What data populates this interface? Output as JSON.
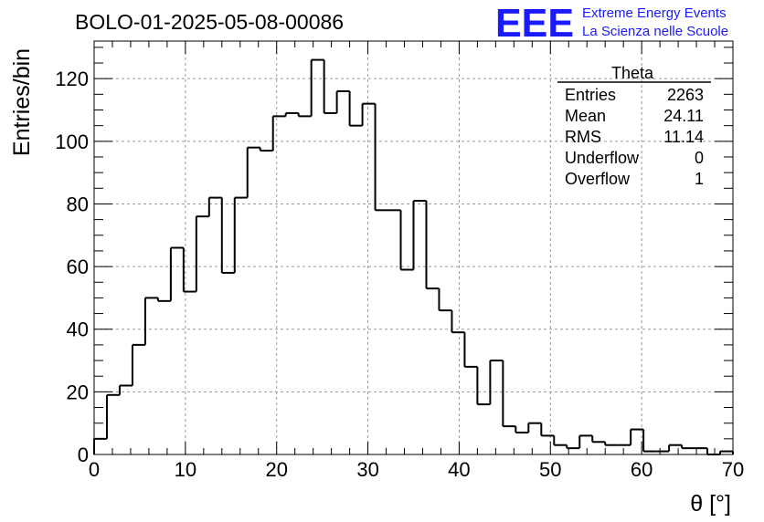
{
  "header": {
    "title": "BOLO-01-2025-05-08-00086",
    "logo_text": "EEE",
    "logo_line1": "Extreme Energy Events",
    "logo_line2": "La Scienza nelle Scuole",
    "logo_color": "#1a1aff"
  },
  "stats_box": {
    "title": "Theta",
    "rows": [
      {
        "label": "Entries",
        "value": "2263"
      },
      {
        "label": "Mean",
        "value": "24.11"
      },
      {
        "label": "RMS",
        "value": "11.14"
      },
      {
        "label": "Underflow",
        "value": "0"
      },
      {
        "label": "Overflow",
        "value": "1"
      }
    ]
  },
  "chart_data": {
    "type": "histogram",
    "title": "BOLO-01-2025-05-08-00086",
    "xlabel": "θ [°]",
    "ylabel": "Entries/bin",
    "xlim": [
      0,
      70
    ],
    "ylim": [
      0,
      132
    ],
    "bin_width": 1.4,
    "grid": true,
    "x_ticks": [
      "0",
      "10",
      "20",
      "30",
      "40",
      "50",
      "60",
      "70"
    ],
    "y_ticks": [
      "0",
      "20",
      "40",
      "60",
      "80",
      "100",
      "120"
    ],
    "line_color": "#000000",
    "bin_edges": [
      0,
      1.4,
      2.8,
      4.2,
      5.6,
      7.0,
      8.4,
      9.8,
      11.2,
      12.6,
      14.0,
      15.4,
      16.8,
      18.2,
      19.6,
      21.0,
      22.4,
      23.8,
      25.2,
      26.6,
      28.0,
      29.4,
      30.8,
      32.2,
      33.6,
      35.0,
      36.4,
      37.8,
      39.2,
      40.6,
      42.0,
      43.4,
      44.8,
      46.2,
      47.6,
      49.0,
      50.4,
      51.8,
      53.2,
      54.6,
      56.0,
      57.4,
      58.8,
      60.2,
      61.6,
      63.0,
      64.4,
      65.8,
      67.2,
      68.6,
      70.0
    ],
    "values": [
      5,
      19,
      22,
      35,
      50,
      49,
      66,
      52,
      76,
      82,
      58,
      82,
      98,
      97,
      108,
      109,
      108,
      126,
      109,
      116,
      105,
      112,
      78,
      78,
      59,
      81,
      53,
      46,
      39,
      28,
      16,
      30,
      9,
      7,
      10,
      6,
      3,
      2,
      6,
      4,
      3,
      3,
      8,
      1,
      1,
      3,
      2,
      2,
      0,
      1
    ]
  }
}
